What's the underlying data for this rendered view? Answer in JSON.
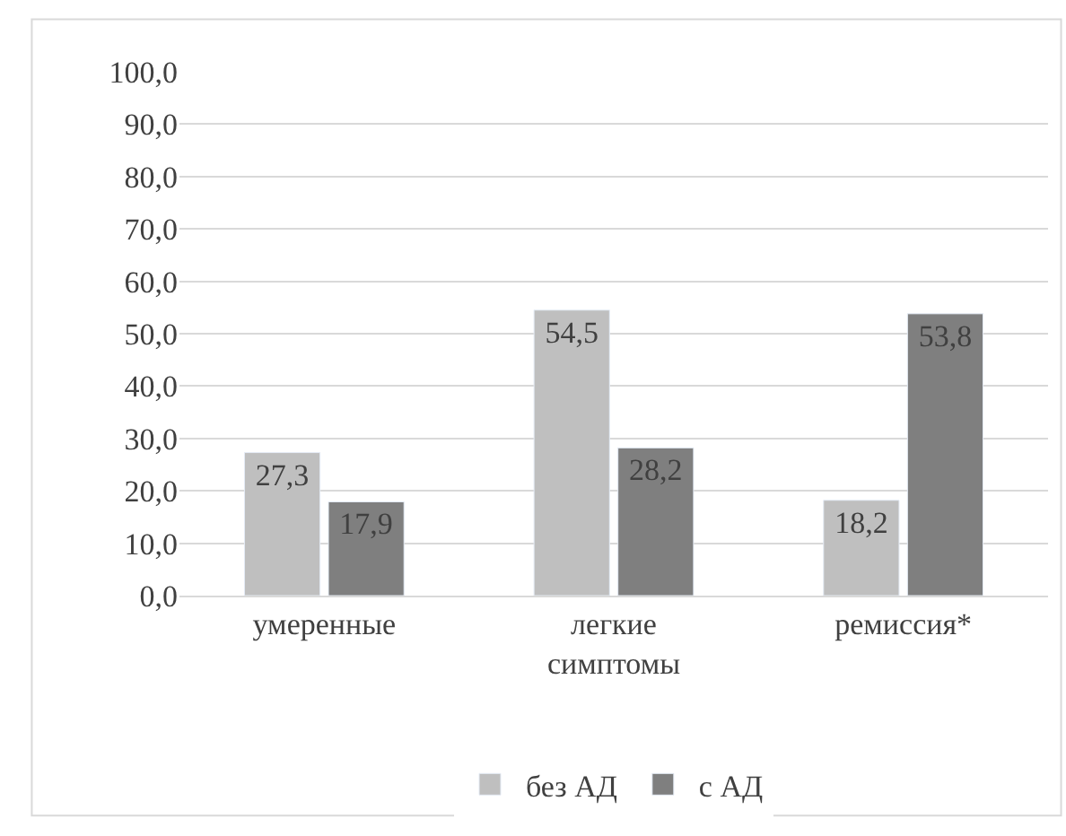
{
  "chart_data": {
    "type": "bar",
    "categories": [
      "умеренные",
      "легкие\nсимптомы",
      "ремиссия*"
    ],
    "series": [
      {
        "name": "без АД",
        "color": "#bfbfbf",
        "values": [
          27.3,
          54.5,
          18.2
        ],
        "value_labels": [
          "27,3",
          "54,5",
          "18,2"
        ]
      },
      {
        "name": "с АД",
        "color": "#7f7f7f",
        "values": [
          17.9,
          28.2,
          53.8
        ],
        "value_labels": [
          "17,9",
          "28,2",
          "53,8"
        ]
      }
    ],
    "ylim": [
      0,
      100
    ],
    "yticks": [
      {
        "value": 0,
        "label": "0,0"
      },
      {
        "value": 10,
        "label": "10,0"
      },
      {
        "value": 20,
        "label": "20,0"
      },
      {
        "value": 30,
        "label": "30,0"
      },
      {
        "value": 40,
        "label": "40,0"
      },
      {
        "value": 50,
        "label": "50,0"
      },
      {
        "value": 60,
        "label": "60,0"
      },
      {
        "value": 70,
        "label": "70,0"
      },
      {
        "value": 80,
        "label": "80,0"
      },
      {
        "value": 90,
        "label": "90,0"
      },
      {
        "value": 100,
        "label": "100,0"
      }
    ],
    "grid": "y",
    "legend": "bottom"
  }
}
